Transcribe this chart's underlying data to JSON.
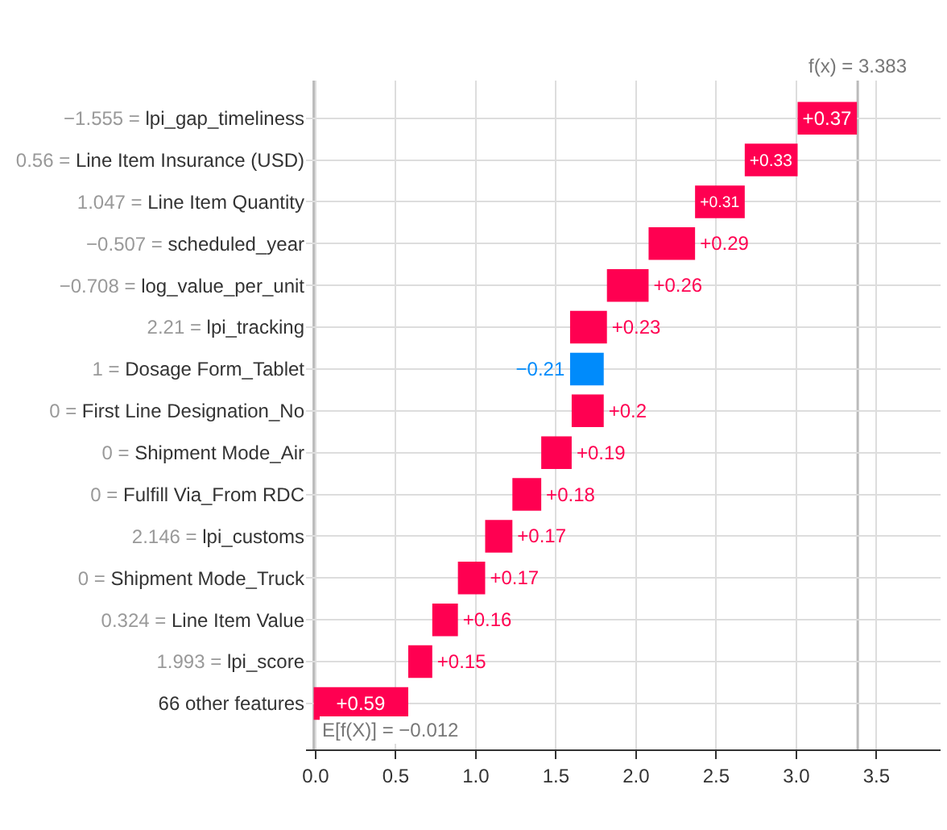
{
  "chart_data": {
    "type": "bar",
    "orientation": "horizontal",
    "categories": [
      "−1.555 = lpi_gap_timeliness",
      "0.56 = Line Item Insurance (USD)",
      "1.047 = Line Item Quantity",
      "−0.507 = scheduled_year",
      "−0.708 = log_value_per_unit",
      "2.21 = lpi_tracking",
      "1 = Dosage Form_Tablet",
      "0 = First Line Designation_No",
      "0 = Shipment Mode_Air",
      "0 = Fulfill Via_From RDC",
      "2.146 = lpi_customs",
      "0 = Shipment Mode_Truck",
      "0.324 = Line Item Value",
      "1.993 = lpi_score",
      "66 other features"
    ],
    "values": [
      0.37,
      0.33,
      0.31,
      0.29,
      0.26,
      0.23,
      -0.21,
      0.2,
      0.19,
      0.18,
      0.17,
      0.17,
      0.16,
      0.15,
      0.59
    ],
    "base": [
      3.008,
      2.678,
      2.368,
      2.078,
      1.818,
      1.588,
      1.798,
      1.598,
      1.408,
      1.228,
      1.058,
      0.888,
      0.728,
      0.578,
      -0.012
    ],
    "value_labels": [
      "+0.37",
      "+0.33",
      "+0.31",
      "+0.29",
      "+0.26",
      "+0.23",
      "−0.21",
      "+0.2",
      "+0.19",
      "+0.18",
      "+0.17",
      "+0.17",
      "+0.16",
      "+0.15",
      "+0.59"
    ],
    "colors": [
      "#ff0051",
      "#ff0051",
      "#ff0051",
      "#ff0051",
      "#ff0051",
      "#ff0051",
      "#008bfb",
      "#ff0051",
      "#ff0051",
      "#ff0051",
      "#ff0051",
      "#ff0051",
      "#ff0051",
      "#ff0051",
      "#ff0051"
    ],
    "xlim": [
      -0.06,
      3.9
    ],
    "xticks": [
      {
        "value": 0,
        "label": "0.0"
      },
      0.5,
      {
        "value": 1,
        "label": "1.0"
      },
      1.5,
      {
        "value": 2,
        "label": "2.0"
      },
      2.5,
      {
        "value": 3,
        "label": "3.0"
      },
      3.5
    ],
    "ref_lines": [
      {
        "axis": "x",
        "value": 3.383,
        "label": "f(x) = 3.383",
        "color": "#bbbbbb"
      },
      {
        "axis": "x",
        "value": -0.012,
        "label": "E[f(X)] = −0.012",
        "color": "#bbbbbb"
      }
    ],
    "grid": true
  }
}
